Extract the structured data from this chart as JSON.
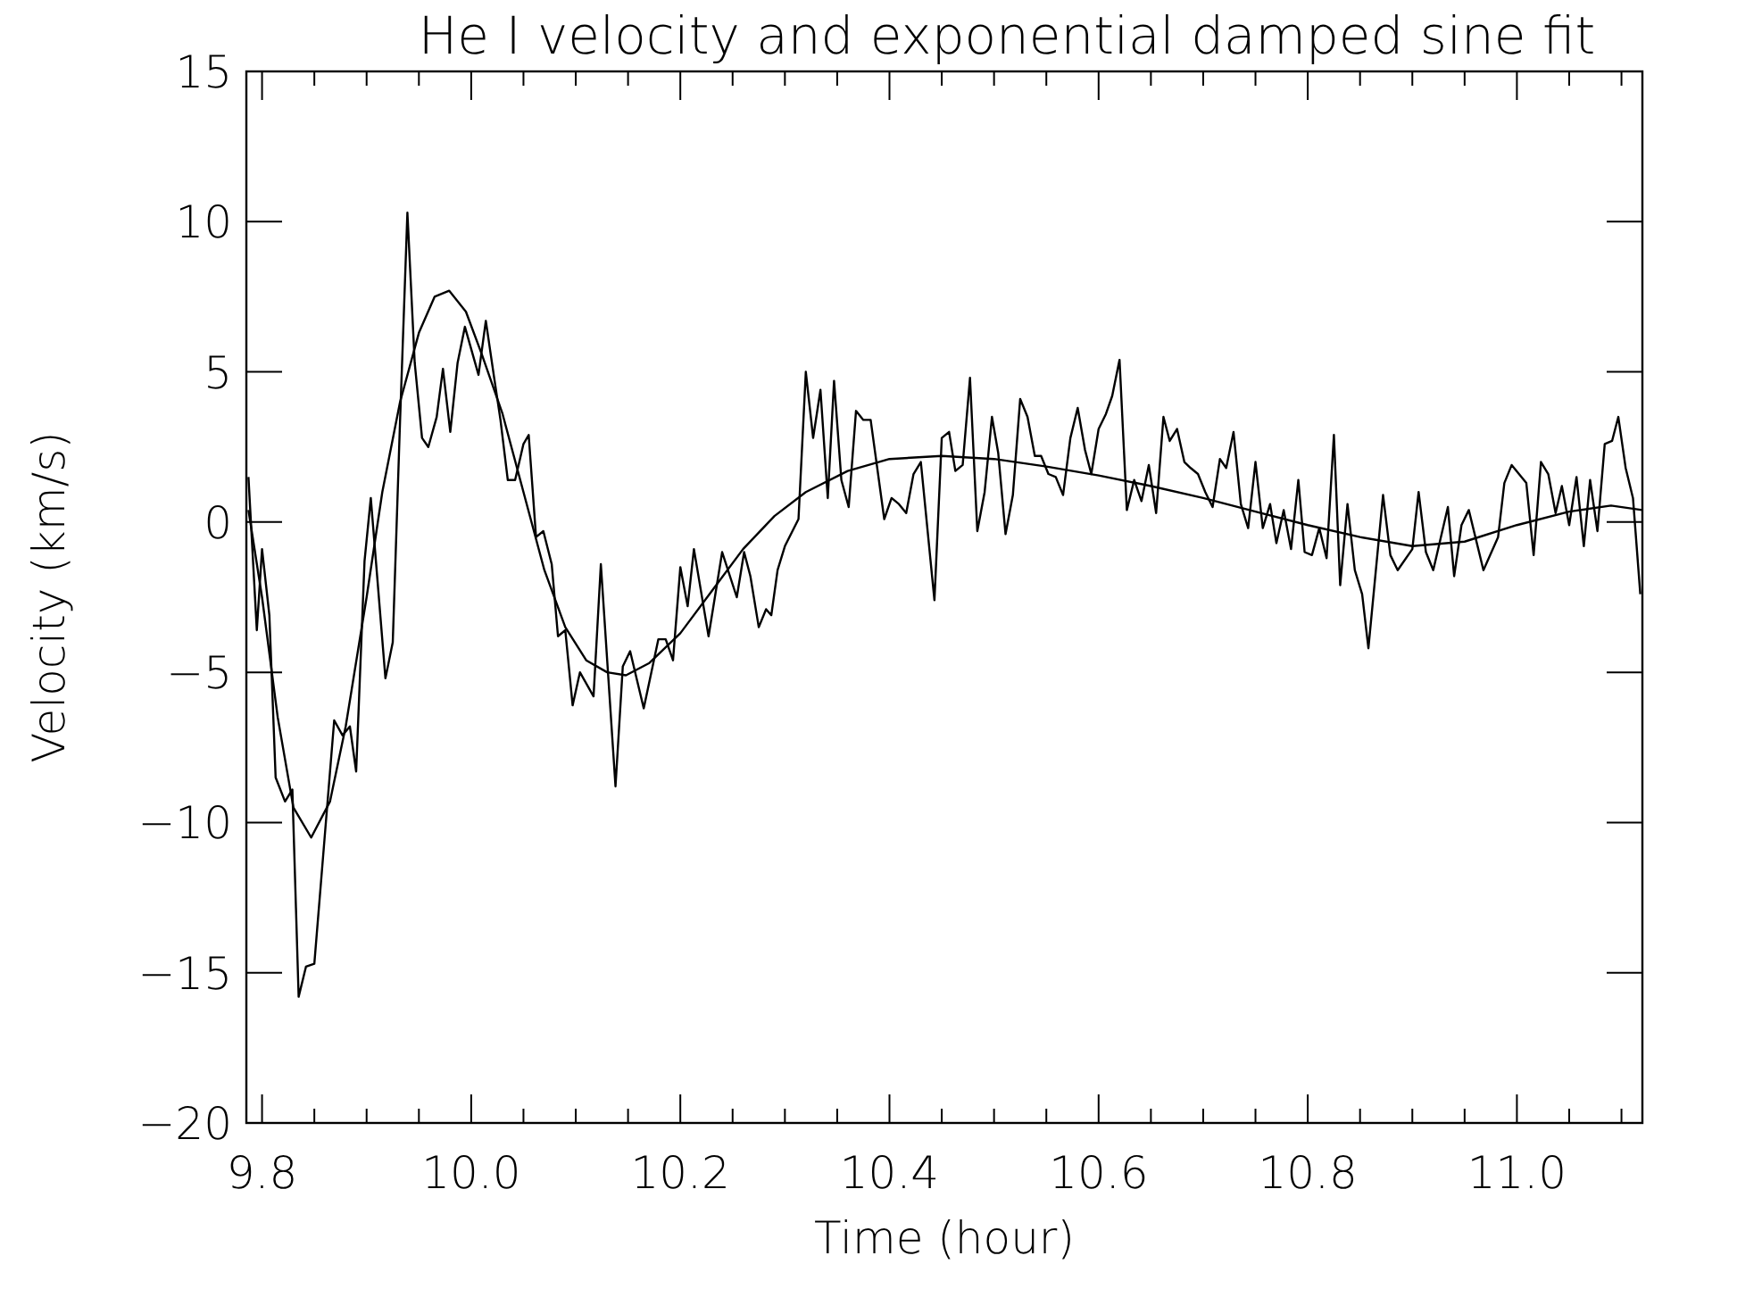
{
  "chart_data": {
    "type": "line",
    "title": "He I velocity and exponential damped sine fit",
    "xlabel": "Time (hour)",
    "ylabel": "Velocity (km/s)",
    "xlim": [
      9.785,
      11.12
    ],
    "ylim": [
      -20,
      15
    ],
    "xticks": [
      {
        "value": 9.8,
        "label": "9.8"
      },
      {
        "value": 9.85,
        "label": null
      },
      {
        "value": 9.9,
        "label": null
      },
      {
        "value": 9.95,
        "label": null
      },
      {
        "value": 10.0,
        "label": "10.0"
      },
      {
        "value": 10.05,
        "label": null
      },
      {
        "value": 10.1,
        "label": null
      },
      {
        "value": 10.15,
        "label": null
      },
      {
        "value": 10.2,
        "label": "10.2"
      },
      {
        "value": 10.25,
        "label": null
      },
      {
        "value": 10.3,
        "label": null
      },
      {
        "value": 10.35,
        "label": null
      },
      {
        "value": 10.4,
        "label": "10.4"
      },
      {
        "value": 10.45,
        "label": null
      },
      {
        "value": 10.5,
        "label": null
      },
      {
        "value": 10.55,
        "label": null
      },
      {
        "value": 10.6,
        "label": "10.6"
      },
      {
        "value": 10.65,
        "label": null
      },
      {
        "value": 10.7,
        "label": null
      },
      {
        "value": 10.75,
        "label": null
      },
      {
        "value": 10.8,
        "label": "10.8"
      },
      {
        "value": 10.85,
        "label": null
      },
      {
        "value": 10.9,
        "label": null
      },
      {
        "value": 10.95,
        "label": null
      },
      {
        "value": 11.0,
        "label": "11.0"
      },
      {
        "value": 11.05,
        "label": null
      },
      {
        "value": 11.1,
        "label": null
      }
    ],
    "yticks": [
      {
        "value": -20,
        "label": "−20"
      },
      {
        "value": -15,
        "label": "−15"
      },
      {
        "value": -10,
        "label": "−10"
      },
      {
        "value": -5,
        "label": "−5"
      },
      {
        "value": 0,
        "label": "0"
      },
      {
        "value": 5,
        "label": "5"
      },
      {
        "value": 10,
        "label": "10"
      },
      {
        "value": 15,
        "label": "15"
      }
    ],
    "grid": false,
    "marker": "none",
    "line_style": "solid",
    "series": [
      {
        "color": "#000000",
        "x": [
          9.787,
          9.795,
          9.8,
          9.807,
          9.813,
          9.822,
          9.829,
          9.835,
          9.842,
          9.85,
          9.869,
          9.877,
          9.884,
          9.89,
          9.898,
          9.904,
          9.918,
          9.925,
          9.932,
          9.939,
          9.946,
          9.953,
          9.959,
          9.967,
          9.973,
          9.98,
          9.987,
          9.994,
          10.007,
          10.014,
          10.022,
          10.028,
          10.035,
          10.042,
          10.05,
          10.055,
          10.062,
          10.069,
          10.077,
          10.083,
          10.09,
          10.097,
          10.104,
          10.117,
          10.124,
          10.138,
          10.145,
          10.152,
          10.165,
          10.179,
          10.186,
          10.193,
          10.2,
          10.207,
          10.213,
          10.227,
          10.24,
          10.254,
          10.261,
          10.267,
          10.275,
          10.282,
          10.287,
          10.293,
          10.3,
          10.313,
          10.32,
          10.327,
          10.334,
          10.341,
          10.347,
          10.354,
          10.361,
          10.368,
          10.375,
          10.382,
          10.395,
          10.402,
          10.409,
          10.416,
          10.423,
          10.43,
          10.443,
          10.45,
          10.457,
          10.463,
          10.47,
          10.477,
          10.484,
          10.491,
          10.498,
          10.504,
          10.511,
          10.518,
          10.525,
          10.532,
          10.539,
          10.545,
          10.552,
          10.559,
          10.566,
          10.573,
          10.58,
          10.587,
          10.593,
          10.6,
          10.607,
          10.613,
          10.62,
          10.627,
          10.634,
          10.641,
          10.648,
          10.655,
          10.662,
          10.668,
          10.675,
          10.682,
          10.688,
          10.695,
          10.702,
          10.709,
          10.716,
          10.722,
          10.729,
          10.736,
          10.743,
          10.75,
          10.757,
          10.764,
          10.77,
          10.777,
          10.784,
          10.791,
          10.797,
          10.804,
          10.811,
          10.818,
          10.825,
          10.831,
          10.838,
          10.845,
          10.852,
          10.858,
          10.872,
          10.879,
          10.886,
          10.9,
          10.906,
          10.913,
          10.92,
          10.934,
          10.94,
          10.947,
          10.954,
          10.968,
          10.982,
          10.988,
          10.995,
          11.009,
          11.016,
          11.023,
          11.03,
          11.037,
          11.043,
          11.05,
          11.057,
          11.064,
          11.07,
          11.077,
          11.084,
          11.091,
          11.097,
          11.104,
          11.111,
          11.118
        ],
        "values": [
          1.5,
          -3.6,
          -0.9,
          -3.1,
          -8.5,
          -9.3,
          -8.9,
          -15.8,
          -14.8,
          -14.7,
          -6.6,
          -7.1,
          -6.8,
          -8.3,
          -1.3,
          0.8,
          -5.2,
          -4.0,
          3.4,
          10.3,
          5.3,
          2.8,
          2.5,
          3.5,
          5.1,
          3.0,
          5.3,
          6.5,
          4.9,
          6.7,
          4.8,
          3.4,
          1.4,
          1.4,
          2.6,
          2.9,
          -0.5,
          -0.3,
          -1.4,
          -3.8,
          -3.6,
          -6.1,
          -5.0,
          -5.8,
          -1.4,
          -8.8,
          -4.8,
          -4.3,
          -6.2,
          -3.9,
          -3.9,
          -4.6,
          -1.5,
          -2.8,
          -0.9,
          -3.8,
          -1.0,
          -2.5,
          -1.0,
          -1.8,
          -3.5,
          -2.9,
          -3.1,
          -1.6,
          -0.8,
          0.1,
          5.0,
          2.8,
          4.4,
          0.8,
          4.7,
          1.4,
          0.5,
          3.7,
          3.4,
          3.4,
          0.1,
          0.8,
          0.6,
          0.3,
          1.6,
          2.0,
          -2.6,
          2.8,
          3.0,
          1.7,
          1.9,
          4.8,
          -0.3,
          1.0,
          3.5,
          2.3,
          -0.4,
          0.9,
          4.1,
          3.5,
          2.2,
          2.2,
          1.6,
          1.5,
          0.9,
          2.8,
          3.8,
          2.4,
          1.6,
          3.1,
          3.6,
          4.2,
          5.4,
          0.4,
          1.4,
          0.7,
          1.9,
          0.3,
          3.5,
          2.7,
          3.1,
          2.0,
          1.8,
          1.6,
          1.0,
          0.5,
          2.1,
          1.8,
          3.0,
          0.6,
          -0.2,
          2.0,
          -0.2,
          0.6,
          -0.7,
          0.4,
          -0.9,
          1.4,
          -1.0,
          -1.1,
          -0.2,
          -1.2,
          2.9,
          -2.1,
          0.6,
          -1.6,
          -2.4,
          -4.2,
          0.9,
          -1.1,
          -1.6,
          -0.9,
          1.0,
          -1.0,
          -1.6,
          0.5,
          -1.8,
          -0.1,
          0.4,
          -1.6,
          -0.5,
          1.3,
          1.9,
          1.3,
          -1.1,
          2.0,
          1.6,
          0.3,
          1.2,
          -0.1,
          1.5,
          -0.8,
          1.4,
          -0.3,
          2.6,
          2.7,
          3.5,
          1.8,
          0.8,
          -2.4
        ]
      },
      {
        "color": "#000000",
        "x": [
          9.787,
          9.8,
          9.815,
          9.83,
          9.847,
          9.865,
          9.88,
          9.9,
          9.915,
          9.932,
          9.95,
          9.965,
          9.979,
          9.995,
          10.01,
          10.03,
          10.05,
          10.07,
          10.09,
          10.11,
          10.13,
          10.148,
          10.17,
          10.2,
          10.23,
          10.26,
          10.29,
          10.32,
          10.36,
          10.4,
          10.45,
          10.5,
          10.55,
          10.6,
          10.65,
          10.7,
          10.75,
          10.8,
          10.85,
          10.9,
          10.95,
          11.0,
          11.05,
          11.09,
          11.12
        ],
        "values": [
          0.4,
          -2.5,
          -6.5,
          -9.5,
          -10.5,
          -9.3,
          -6.8,
          -2.5,
          1.0,
          4.0,
          6.3,
          7.5,
          7.7,
          7.0,
          5.6,
          3.6,
          1.0,
          -1.6,
          -3.5,
          -4.6,
          -5.0,
          -5.1,
          -4.7,
          -3.7,
          -2.3,
          -0.9,
          0.2,
          1.0,
          1.7,
          2.1,
          2.2,
          2.1,
          1.85,
          1.55,
          1.2,
          0.8,
          0.35,
          -0.1,
          -0.5,
          -0.8,
          -0.65,
          -0.1,
          0.35,
          0.55,
          0.4
        ]
      }
    ]
  }
}
